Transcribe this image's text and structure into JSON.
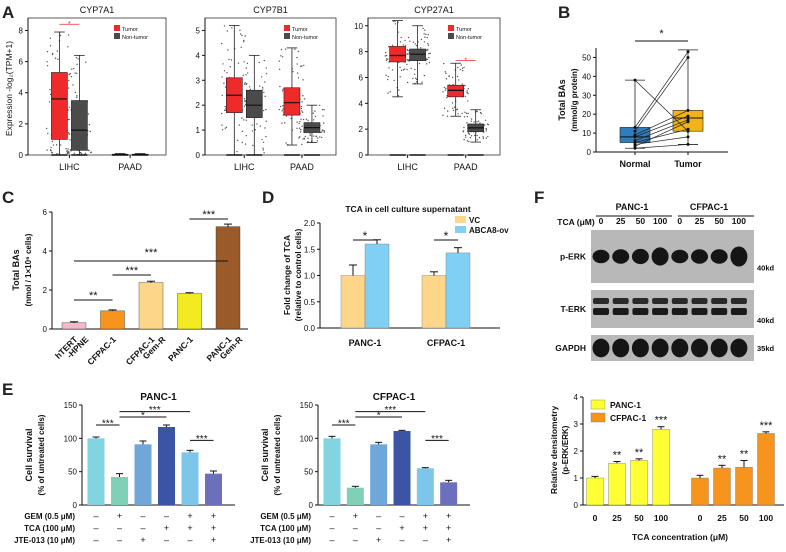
{
  "panels": {
    "A": {
      "letter": "A"
    },
    "B": {
      "letter": "B"
    },
    "C": {
      "letter": "C"
    },
    "D": {
      "letter": "D"
    },
    "E": {
      "letter": "E"
    },
    "F": {
      "letter": "F"
    }
  },
  "colors": {
    "tumor": "#ee2a2a",
    "nontumor": "#4b4b4b",
    "normal_box": "#2f7dbd",
    "tumor_box": "#f2b318",
    "vc": "#fdd68a",
    "abca8": "#7fd0f3",
    "panc1_yellow": "#ffff33",
    "cfpac1_orange": "#f7941d"
  },
  "chart_data": [
    {
      "id": "A1",
      "type": "box",
      "title": "CYP7A1",
      "ylabel": "Expression -log₂(TPM+1)",
      "categories": [
        "LIHC",
        "PAAD"
      ],
      "legend": [
        "Tumor",
        "Non-tumor"
      ],
      "yticks": [
        "0",
        "2",
        "4",
        "6",
        "8"
      ],
      "ylim": [
        0,
        8.8
      ],
      "boxes": [
        {
          "cat": "LIHC",
          "group": "Tumor",
          "min": 0,
          "q1": 1.0,
          "median": 3.6,
          "q3": 5.3,
          "max": 7.9
        },
        {
          "cat": "LIHC",
          "group": "Non-tumor",
          "min": 0,
          "q1": 0.3,
          "median": 1.6,
          "q3": 3.5,
          "max": 6.4
        },
        {
          "cat": "PAAD",
          "group": "Tumor",
          "min": 0,
          "q1": 0,
          "median": 0.02,
          "q3": 0.05,
          "max": 0.1
        },
        {
          "cat": "PAAD",
          "group": "Non-tumor",
          "min": 0,
          "q1": 0,
          "median": 0.02,
          "q3": 0.05,
          "max": 0.1
        }
      ],
      "annotations": [
        "*"
      ]
    },
    {
      "id": "A2",
      "type": "box",
      "title": "CYP7B1",
      "categories": [
        "LIHC",
        "PAAD"
      ],
      "legend": [
        "Tumor",
        "Non-tumor"
      ],
      "yticks": [
        "0",
        "1",
        "2",
        "3",
        "4",
        "5"
      ],
      "ylim": [
        0,
        5.5
      ],
      "boxes": [
        {
          "cat": "LIHC",
          "group": "Tumor",
          "min": 0,
          "q1": 1.7,
          "median": 2.4,
          "q3": 3.1,
          "max": 5.2
        },
        {
          "cat": "LIHC",
          "group": "Non-tumor",
          "min": 0,
          "q1": 1.5,
          "median": 2.0,
          "q3": 2.6,
          "max": 4.0
        },
        {
          "cat": "PAAD",
          "group": "Tumor",
          "min": 0.4,
          "q1": 1.6,
          "median": 2.1,
          "q3": 2.7,
          "max": 4.3
        },
        {
          "cat": "PAAD",
          "group": "Non-tumor",
          "min": 0.5,
          "q1": 0.9,
          "median": 1.1,
          "q3": 1.3,
          "max": 2.0
        }
      ]
    },
    {
      "id": "A3",
      "type": "box",
      "title": "CYP27A1",
      "categories": [
        "LIHC",
        "PAAD"
      ],
      "legend": [
        "Tumor",
        "Non-tumor"
      ],
      "yticks": [
        "0",
        "2",
        "4",
        "6",
        "8",
        "10"
      ],
      "ylim": [
        0,
        10.6
      ],
      "boxes": [
        {
          "cat": "LIHC",
          "group": "Tumor",
          "min": 4.5,
          "q1": 7.2,
          "median": 7.7,
          "q3": 8.4,
          "max": 10.4
        },
        {
          "cat": "LIHC",
          "group": "Non-tumor",
          "min": 5.5,
          "q1": 7.3,
          "median": 7.8,
          "q3": 8.2,
          "max": 10.0
        },
        {
          "cat": "PAAD",
          "group": "Tumor",
          "min": 3.0,
          "q1": 4.5,
          "median": 5.0,
          "q3": 5.4,
          "max": 7.1
        },
        {
          "cat": "PAAD",
          "group": "Non-tumor",
          "min": 1.0,
          "q1": 1.8,
          "median": 2.1,
          "q3": 2.4,
          "max": 3.5
        }
      ],
      "annotations": [
        "*"
      ]
    },
    {
      "id": "B",
      "type": "box",
      "ylabel": "Total BAs",
      "ylabel2": "(mmol/g protein)",
      "categories": [
        "Normal",
        "Tumor"
      ],
      "yticks": [
        "0",
        "10",
        "20",
        "30",
        "40",
        "50"
      ],
      "ylim": [
        0,
        55
      ],
      "boxes": [
        {
          "cat": "Normal",
          "min": 2,
          "q1": 5,
          "median": 8,
          "q3": 13,
          "max": 38
        },
        {
          "cat": "Tumor",
          "min": 4,
          "q1": 11,
          "median": 18,
          "q3": 22,
          "max": 54
        }
      ],
      "pairs": [
        [
          38,
          11
        ],
        [
          13,
          53
        ],
        [
          11,
          50
        ],
        [
          9,
          22
        ],
        [
          8,
          19
        ],
        [
          6,
          17
        ],
        [
          5,
          12
        ],
        [
          4,
          8
        ],
        [
          3,
          16
        ],
        [
          2,
          4
        ]
      ],
      "annotations": [
        "*"
      ]
    },
    {
      "id": "C",
      "type": "bar",
      "ylabel": "Total BAs",
      "ylabel2": "(nmol / 1×10⁶ cells)",
      "categories": [
        "hTERT\n-HPNE",
        "CFPAC-1",
        "CFPAC-1\nGem-R",
        "PANC-1",
        "PANC-1\nGem-R"
      ],
      "values": [
        0.32,
        0.93,
        2.38,
        1.82,
        5.25
      ],
      "errors": [
        0.05,
        0.05,
        0.07,
        0.04,
        0.13
      ],
      "yticks": [
        "0",
        "2",
        "4",
        "6"
      ],
      "ylim": [
        0,
        6
      ],
      "annotations": [
        "**",
        "***",
        "***",
        "***"
      ]
    },
    {
      "id": "D",
      "type": "bar",
      "title": "TCA in cell culture supernatant",
      "ylabel": "Fold change of TCA",
      "ylabel2": "(relative to control cells)",
      "categories": [
        "PANC-1",
        "CFPAC-1"
      ],
      "yticks": [
        "0.0",
        "0.5",
        "1.0",
        "1.5",
        "2.0"
      ],
      "ylim": [
        0,
        2.0
      ],
      "series": [
        {
          "name": "VC",
          "values": [
            1.0,
            1.0
          ],
          "errors": [
            0.2,
            0.07
          ]
        },
        {
          "name": "ABCA8-ov",
          "values": [
            1.6,
            1.43
          ],
          "errors": [
            0.08,
            0.1
          ]
        }
      ],
      "annotations": [
        "*",
        "*"
      ]
    },
    {
      "id": "E1",
      "type": "bar",
      "title": "PANC-1",
      "ylabel": "Cell survival",
      "ylabel2": "(% of untreated cells)",
      "values": [
        100,
        42,
        91,
        117,
        79,
        47
      ],
      "errors": [
        2,
        5,
        5,
        3,
        3,
        4
      ],
      "yticks": [
        "0",
        "50",
        "100",
        "150"
      ],
      "ylim": [
        0,
        150
      ],
      "annotations": [
        "***",
        "*",
        "***",
        "***"
      ],
      "treatments": [
        {
          "label": "GEM (0.5 μM)",
          "marks": [
            "–",
            "+",
            "–",
            "–",
            "+",
            "+"
          ]
        },
        {
          "label": "TCA (100 μM)",
          "marks": [
            "–",
            "–",
            "–",
            "+",
            "+",
            "+"
          ]
        },
        {
          "label": "JTE-013 (10 μM)",
          "marks": [
            "–",
            "–",
            "+",
            "–",
            "–",
            "+"
          ]
        }
      ]
    },
    {
      "id": "E2",
      "type": "bar",
      "title": "CFPAC-1",
      "ylabel": "Cell survival",
      "ylabel2": "(% of untreated cells)",
      "values": [
        100,
        26,
        91,
        111,
        55,
        34
      ],
      "errors": [
        3,
        2,
        3,
        1,
        1,
        3
      ],
      "yticks": [
        "0",
        "50",
        "100",
        "150"
      ],
      "ylim": [
        0,
        150
      ],
      "annotations": [
        "***",
        "*",
        "***",
        "***"
      ],
      "treatments": [
        {
          "label": "GEM (0.5 μM)",
          "marks": [
            "–",
            "+",
            "–",
            "–",
            "+",
            "+"
          ]
        },
        {
          "label": "TCA (100 μM)",
          "marks": [
            "–",
            "–",
            "–",
            "+",
            "+",
            "+"
          ]
        },
        {
          "label": "JTE-013 (10 μM)",
          "marks": [
            "–",
            "–",
            "+",
            "–",
            "–",
            "+"
          ]
        }
      ]
    },
    {
      "id": "F2",
      "type": "bar",
      "ylabel": "Relative densitometry",
      "ylabel2": "(p-ERK/ERK)",
      "xlabel": "TCA concentration (μM)",
      "categories": [
        "0",
        "25",
        "50",
        "100"
      ],
      "series": [
        {
          "name": "PANC-1",
          "values": [
            1.0,
            1.55,
            1.65,
            2.8
          ],
          "errors": [
            0.06,
            0.06,
            0.06,
            0.1
          ]
        },
        {
          "name": "CFPAC-1",
          "values": [
            1.0,
            1.37,
            1.4,
            2.65
          ],
          "errors": [
            0.1,
            0.1,
            0.25,
            0.06
          ]
        }
      ],
      "yticks": [
        "0",
        "1",
        "2",
        "3",
        "4"
      ],
      "ylim": [
        0,
        4
      ],
      "annotations": [
        "**",
        "**",
        "***",
        "**",
        "**",
        "***"
      ]
    }
  ],
  "western_blot": {
    "cell_lines": [
      "PANC-1",
      "CFPAC-1"
    ],
    "tca_label": "TCA (μM)",
    "concentrations": [
      "0",
      "25",
      "50",
      "100",
      "0",
      "25",
      "50",
      "100"
    ],
    "rows": [
      {
        "label": "p-ERK",
        "marker": "40kd"
      },
      {
        "label": "T-ERK",
        "marker": "40kd"
      },
      {
        "label": "GAPDH",
        "marker": "35kd"
      }
    ]
  }
}
